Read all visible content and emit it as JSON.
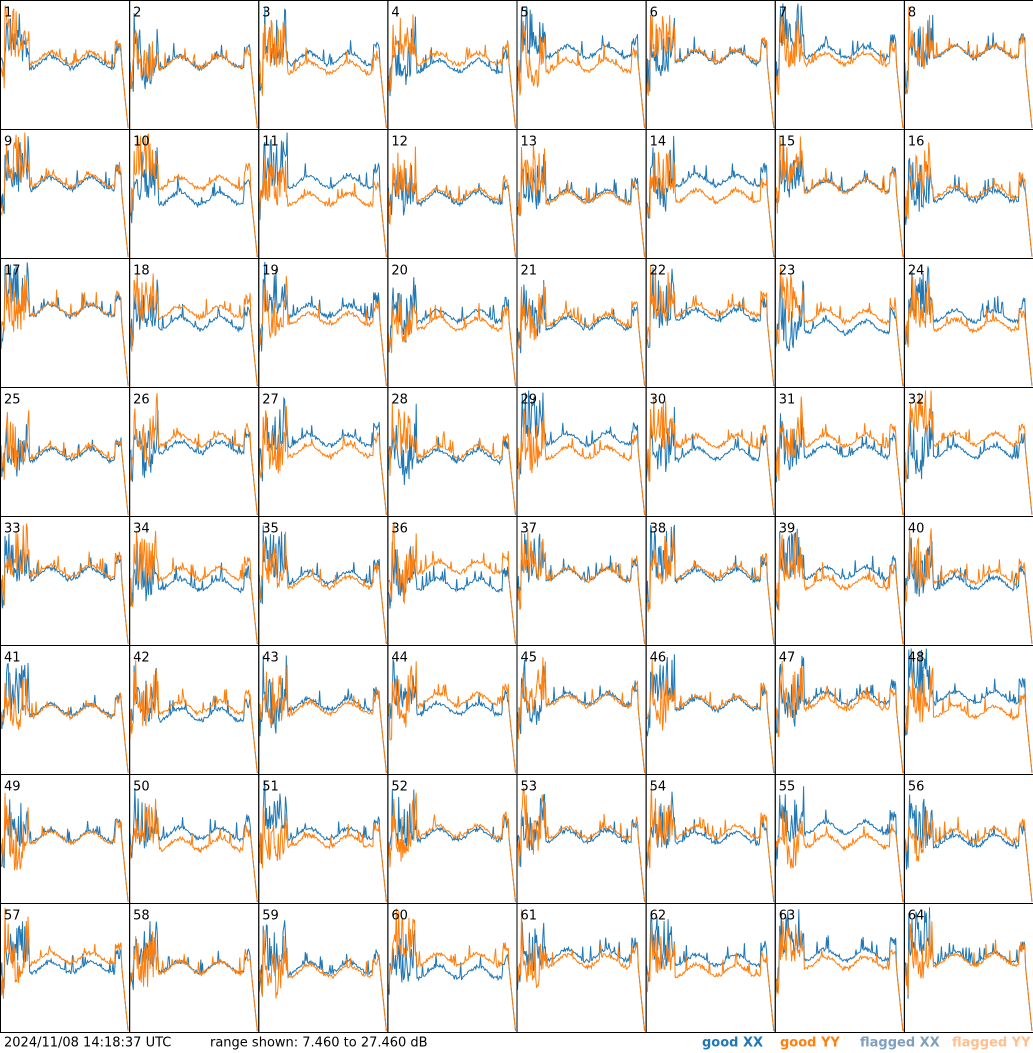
{
  "panels": [
    "1",
    "2",
    "3",
    "4",
    "5",
    "6",
    "7",
    "8",
    "9",
    "10",
    "11",
    "12",
    "13",
    "14",
    "15",
    "16",
    "17",
    "18",
    "19",
    "20",
    "21",
    "22",
    "23",
    "24",
    "25",
    "26",
    "27",
    "28",
    "29",
    "30",
    "31",
    "32",
    "33",
    "34",
    "35",
    "36",
    "37",
    "38",
    "39",
    "40",
    "41",
    "42",
    "43",
    "44",
    "45",
    "46",
    "47",
    "48",
    "49",
    "50",
    "51",
    "52",
    "53",
    "54",
    "55",
    "56",
    "57",
    "58",
    "59",
    "60",
    "61",
    "62",
    "63",
    "64"
  ],
  "footer": {
    "timestamp": "2024/11/08 14:18:37 UTC",
    "range": "range shown: 7.460 to 27.460 dB"
  },
  "legend": [
    {
      "label": "good XX",
      "color": "#1f77b4"
    },
    {
      "label": "good YY",
      "color": "#ff7f0e"
    },
    {
      "label": "flagged XX",
      "color": "#7f9fbf"
    },
    {
      "label": "flagged YY",
      "color": "#ffbf8f"
    }
  ]
}
